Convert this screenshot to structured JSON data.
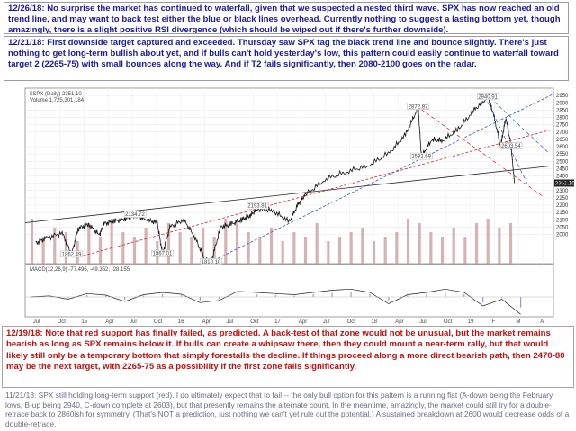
{
  "notes": {
    "n1": "12/26/18:  No surprise the market has continued to waterfall, given that we suspected a nested third wave.  SPX has now reached an old trend line, and may want to back test either the blue or black lines overhead.  Currently nothing to suggest a lasting bottom yet, though amazingly, there is a slight positive RSI divergence (which should be wiped out if there's further downside).",
    "n2": "12/21/18:  First downside target captured and exceeded.  Thursday saw SPX tag the black trend line and bounce slightly.  There's just nothing to get long-term bullish about yet, and if bulls can't hold yesterday's low, this pattern could easily continue to waterfall toward target 2 (2265-75) with small bounces along the way.  And if T2 fails significantly, then 2080-2100 goes on the radar.",
    "n3": "12/19/18:  Note that red support has finally failed, as predicted.  A back-test of that zone would not be unusual, but the market remains bearish as long as SPX remains below it.  If bulls can create a whipsaw there, then they could mount a near-term rally, but that would likely still only be a temporary bottom that simply forestalls the decline.  If things proceed along a more direct bearish path, then 2470-80 may be the next target, with 2265-75 as a possibility if the first zone fails significantly.",
    "n4": "11/21/18:  SPX still holding long-term support (red).  I do ultimately expect that to fail -- the only bull option for this pattern is a running flat (A-down being the February lows, B-up being 2940, C-down complete at 2603), but that presently remains the alternate count.  In the meantime, amazingly, the market could still try for a double-retrace back to 2860ish for symmetry.  (That's NOT a prediction, just nothing we can't yet rule out the potential.)  A sustained breakdown at 2600 would decrease odds of a double-retrace."
  },
  "chart_data": {
    "type": "line",
    "header": "$SPX (Daily) 2351.10",
    "volume_label": "Volume 1,725,301,184",
    "macd_label": "MACD(12,26,9) -77.496, -49.352, -28.155",
    "last_price_label": "2351.10",
    "x_labels": [
      "Jul",
      "Oct",
      "15",
      "Apr",
      "Jul",
      "Oct",
      "16",
      "Apr",
      "Jul",
      "Oct",
      "17",
      "Apr",
      "Jul",
      "Oct",
      "18",
      "Apr",
      "Jul",
      "Oct",
      "19",
      "F",
      "M",
      "A"
    ],
    "y_ticks": [
      2000,
      2050,
      2100,
      2150,
      2200,
      2250,
      2300,
      2350,
      2400,
      2450,
      2500,
      2550,
      2600,
      2650,
      2700,
      2750,
      2800,
      2850,
      2900,
      2950
    ],
    "ylim": [
      1800,
      3000
    ],
    "series": [
      {
        "t": [
          2014.45,
          2014.55,
          2014.7,
          2014.79,
          2014.85,
          2014.95,
          2015.05,
          2015.1,
          2015.2,
          2015.3,
          2015.39,
          2015.5,
          2015.6,
          2015.65,
          2015.72,
          2015.85,
          2015.95,
          2016.05,
          2016.11,
          2016.2,
          2016.3,
          2016.4,
          2016.48,
          2016.55,
          2016.7,
          2016.85,
          2016.93,
          2017.0,
          2017.2,
          2017.4,
          2017.6,
          2017.8,
          2017.95,
          2018.07,
          2018.1,
          2018.2,
          2018.3,
          2018.45,
          2018.6,
          2018.73,
          2018.78,
          2018.85,
          2018.9,
          2018.95,
          2018.98
        ],
        "v": [
          1940,
          1975,
          2010,
          1862,
          2040,
          2070,
          1995,
          2075,
          2090,
          2110,
          2130,
          2100,
          2080,
          1867,
          2050,
          2100,
          1990,
          1830,
          1810,
          2050,
          2070,
          2100,
          2130,
          2175,
          2160,
          2085,
          2200,
          2270,
          2380,
          2430,
          2470,
          2560,
          2680,
          2870,
          2532,
          2650,
          2640,
          2720,
          2850,
          2940,
          2830,
          2603,
          2800,
          2600,
          2351
        ]
      }
    ],
    "annotations": [
      {
        "t": 2014.79,
        "v": 1862,
        "text": "1862.49"
      },
      {
        "t": 2016.11,
        "v": 1810,
        "text": "1810.10"
      },
      {
        "t": 2015.65,
        "v": 1867,
        "text": "1867.01"
      },
      {
        "t": 2015.39,
        "v": 2134,
        "text": "2134.72"
      },
      {
        "t": 2016.55,
        "v": 2193,
        "text": "2193.81"
      },
      {
        "t": 2018.07,
        "v": 2872,
        "text": "2872.87"
      },
      {
        "t": 2018.1,
        "v": 2532,
        "text": "2532.69"
      },
      {
        "t": 2018.73,
        "v": 2940,
        "text": "2940.91"
      },
      {
        "t": 2018.95,
        "v": 2603,
        "text": "2603.54"
      }
    ],
    "volume": [
      1,
      0.6,
      0.8,
      0.7,
      0.5,
      0.9,
      0.6,
      1.0,
      0.7,
      0.6,
      0.8,
      0.5,
      0.9,
      0.7,
      0.6,
      0.8,
      0.6,
      1.0,
      0.9,
      0.7,
      0.6,
      0.8,
      0.5,
      0.7,
      0.6,
      0.9,
      0.5,
      0.6,
      0.7,
      0.8,
      0.5,
      0.6,
      0.7,
      1.0,
      0.9,
      0.7,
      0.6,
      0.8,
      0.6,
      0.9,
      1.0,
      0.8,
      0.9
    ],
    "macd": [
      0,
      5,
      -10,
      15,
      8,
      -20,
      10,
      20,
      12,
      -25,
      -15,
      25,
      20,
      15,
      10,
      20,
      30,
      35,
      20,
      -30,
      10,
      20,
      35,
      20,
      -40,
      -10,
      -77
    ],
    "trendlines_meaning": [
      "red long-term support",
      "blue trend line",
      "black trend line"
    ],
    "grid": true
  }
}
